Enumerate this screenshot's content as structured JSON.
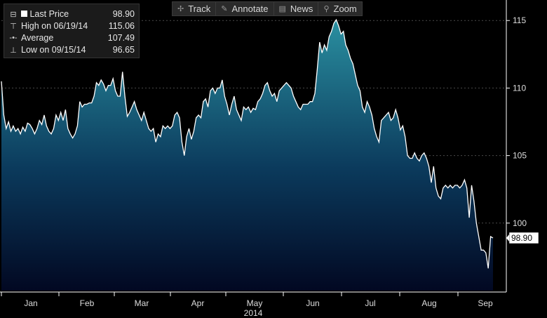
{
  "legend": {
    "last_price_label": "Last Price",
    "last_price_value": "98.90",
    "high_label": "High on 06/19/14",
    "high_value": "115.06",
    "average_label": "Average",
    "average_value": "107.49",
    "low_label": "Low on 09/15/14",
    "low_value": "96.65"
  },
  "toolbar": [
    {
      "label": "Track",
      "icon": "crosshair-icon",
      "glyph": "✢"
    },
    {
      "label": "Annotate",
      "icon": "pencil-icon",
      "glyph": "✎"
    },
    {
      "label": "News",
      "icon": "news-icon",
      "glyph": "▤"
    },
    {
      "label": "Zoom",
      "icon": "magnifier-icon",
      "glyph": "⚲"
    }
  ],
  "colors": {
    "line": "#ffffff",
    "fill_top": "#2a8fa0",
    "fill_bottom": "#020822",
    "grid": "#4a4a4a",
    "axis": "#ffffff"
  },
  "chart_data": {
    "type": "area",
    "year_label": "2014",
    "last_value_label": "98.90",
    "x_tick_labels": [
      "Jan",
      "Feb",
      "Mar",
      "Apr",
      "May",
      "Jun",
      "Jul",
      "Aug",
      "Sep"
    ],
    "y_ticks": [
      100,
      105,
      110,
      115
    ],
    "ylim": [
      95,
      116
    ],
    "grid": "horizontal dashed",
    "legend_position": "top-left",
    "series": [
      {
        "values": [
          110.5,
          108.0,
          107.0,
          107.5,
          106.8,
          107.2,
          106.8,
          107.0,
          106.6,
          107.1,
          106.8,
          107.4,
          107.3,
          107.0,
          106.6,
          107.0,
          107.6,
          107.3,
          108.0,
          107.2,
          106.8,
          106.6,
          107.0,
          108.0,
          107.6,
          108.2,
          107.6,
          108.4,
          107.0,
          106.6,
          106.3,
          106.6,
          107.2,
          109.0,
          108.6,
          108.8,
          108.8,
          108.9,
          108.9,
          109.4,
          110.4,
          110.2,
          110.6,
          110.3,
          109.8,
          110.2,
          110.2,
          110.7,
          109.8,
          109.4,
          109.4,
          111.2,
          109.4,
          107.9,
          108.2,
          108.6,
          109.0,
          108.4,
          108.0,
          107.6,
          108.2,
          107.6,
          107.0,
          106.8,
          107.0,
          106.0,
          106.6,
          106.4,
          107.2,
          107.0,
          107.2,
          107.0,
          107.2,
          108.0,
          108.2,
          107.8,
          106.0,
          105.0,
          106.4,
          107.0,
          106.2,
          106.8,
          107.8,
          108.0,
          107.8,
          109.0,
          109.2,
          108.6,
          109.8,
          110.0,
          109.6,
          110.0,
          110.0,
          110.6,
          109.4,
          108.8,
          108.0,
          108.8,
          109.4,
          108.4,
          108.0,
          107.6,
          108.6,
          108.4,
          108.6,
          108.2,
          108.5,
          108.4,
          109.0,
          109.2,
          109.6,
          110.2,
          110.4,
          109.8,
          109.4,
          109.6,
          109.0,
          109.8,
          110.0,
          110.2,
          110.4,
          110.2,
          110.0,
          109.4,
          109.0,
          108.6,
          108.4,
          108.8,
          108.8,
          108.8,
          109.0,
          109.0,
          109.6,
          111.4,
          113.4,
          112.6,
          113.2,
          112.8,
          113.8,
          114.2,
          114.8,
          115.06,
          114.6,
          114.0,
          114.2,
          113.2,
          112.8,
          112.2,
          111.8,
          111.0,
          110.2,
          109.8,
          108.6,
          108.2,
          109.0,
          108.6,
          108.0,
          107.0,
          106.4,
          106.0,
          107.6,
          107.8,
          108.0,
          108.2,
          107.6,
          107.8,
          108.4,
          107.8,
          106.9,
          107.2,
          106.4,
          105.0,
          104.8,
          104.8,
          105.2,
          104.8,
          104.6,
          105.0,
          105.2,
          104.8,
          104.2,
          103.0,
          104.2,
          102.6,
          102.0,
          101.8,
          102.6,
          102.8,
          102.6,
          102.8,
          102.6,
          102.8,
          102.8,
          102.6,
          102.8,
          103.2,
          102.6,
          100.4,
          102.8,
          101.6,
          100.0,
          99.0,
          98.0,
          98.0,
          97.8,
          96.65,
          99.0,
          98.9
        ]
      }
    ]
  }
}
